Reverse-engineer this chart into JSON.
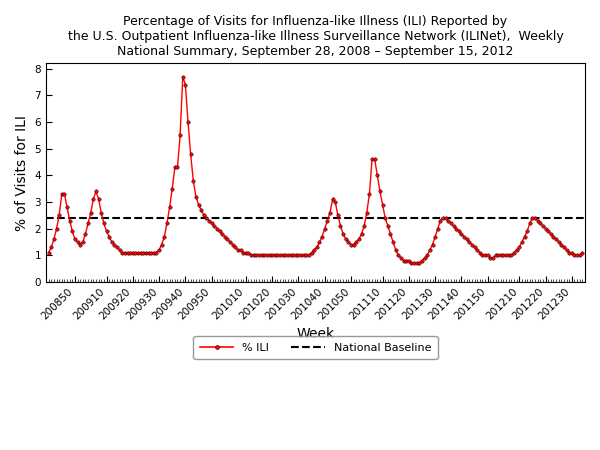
{
  "title": "Percentage of Visits for Influenza-like Illness (ILI) Reported by\nthe U.S. Outpatient Influenza-like Illness Surveillance Network (ILINet),  Weekly\nNational Summary, September 28, 2008 – September 15, 2012",
  "xlabel": "Week",
  "ylabel": "% of Visits for ILI",
  "national_baseline": 2.4,
  "ylim": [
    0,
    8.2
  ],
  "yticks": [
    0,
    1,
    2,
    3,
    4,
    5,
    6,
    7,
    8
  ],
  "line_color": "#FF0000",
  "baseline_color": "#000000",
  "marker": "o",
  "marker_size": 2.5,
  "line_width": 1.0,
  "tick_label_fontsize": 7.5,
  "axis_label_fontsize": 10,
  "title_fontsize": 9,
  "x_tick_labels": [
    "200850",
    "200910",
    "200920",
    "200930",
    "200940",
    "200950",
    "201010",
    "201020",
    "201030",
    "201040",
    "201050",
    "201110",
    "201120",
    "201130",
    "201140",
    "201150",
    "201210",
    "201220",
    "201230"
  ],
  "ili_values": [
    1.1,
    1.3,
    1.6,
    2.0,
    2.5,
    3.3,
    3.3,
    2.8,
    2.3,
    1.9,
    1.6,
    1.5,
    1.4,
    1.5,
    1.8,
    2.2,
    2.6,
    3.1,
    3.4,
    3.1,
    2.6,
    2.2,
    1.9,
    1.7,
    1.5,
    1.4,
    1.3,
    1.2,
    1.1,
    1.1,
    1.1,
    1.1,
    1.1,
    1.1,
    1.1,
    1.1,
    1.1,
    1.1,
    1.1,
    1.1,
    1.1,
    1.1,
    1.2,
    1.4,
    1.7,
    2.2,
    2.8,
    3.5,
    4.3,
    4.3,
    5.5,
    7.7,
    7.4,
    6.0,
    4.8,
    3.8,
    3.2,
    2.9,
    2.7,
    2.5,
    2.4,
    2.3,
    2.2,
    2.1,
    2.0,
    1.9,
    1.8,
    1.7,
    1.6,
    1.5,
    1.4,
    1.3,
    1.2,
    1.2,
    1.1,
    1.1,
    1.1,
    1.0,
    1.0,
    1.0,
    1.0,
    1.0,
    1.0,
    1.0,
    1.0,
    1.0,
    1.0,
    1.0,
    1.0,
    1.0,
    1.0,
    1.0,
    1.0,
    1.0,
    1.0,
    1.0,
    1.0,
    1.0,
    1.0,
    1.0,
    1.1,
    1.2,
    1.3,
    1.5,
    1.7,
    2.0,
    2.3,
    2.6,
    3.1,
    3.0,
    2.5,
    2.1,
    1.8,
    1.6,
    1.5,
    1.4,
    1.4,
    1.5,
    1.6,
    1.8,
    2.1,
    2.6,
    3.3,
    4.6,
    4.6,
    4.0,
    3.4,
    2.9,
    2.4,
    2.1,
    1.8,
    1.5,
    1.2,
    1.0,
    0.9,
    0.8,
    0.8,
    0.8,
    0.7,
    0.7,
    0.7,
    0.7,
    0.8,
    0.9,
    1.0,
    1.2,
    1.4,
    1.7,
    2.0,
    2.3,
    2.4,
    2.4,
    2.3,
    2.2,
    2.1,
    2.0,
    1.9,
    1.8,
    1.7,
    1.6,
    1.5,
    1.4,
    1.3,
    1.2,
    1.1,
    1.0,
    1.0,
    1.0,
    0.9,
    0.9,
    1.0,
    1.0,
    1.0,
    1.0,
    1.0,
    1.0,
    1.0,
    1.1,
    1.2,
    1.3,
    1.5,
    1.7,
    1.9,
    2.2,
    2.4,
    2.4,
    2.3,
    2.2,
    2.1,
    2.0,
    1.9,
    1.8,
    1.7,
    1.6,
    1.5,
    1.4,
    1.3,
    1.2,
    1.1,
    1.1,
    1.0,
    1.0,
    1.0,
    1.1
  ],
  "week_sequence": {
    "start_year": 2008,
    "start_week": 40
  }
}
